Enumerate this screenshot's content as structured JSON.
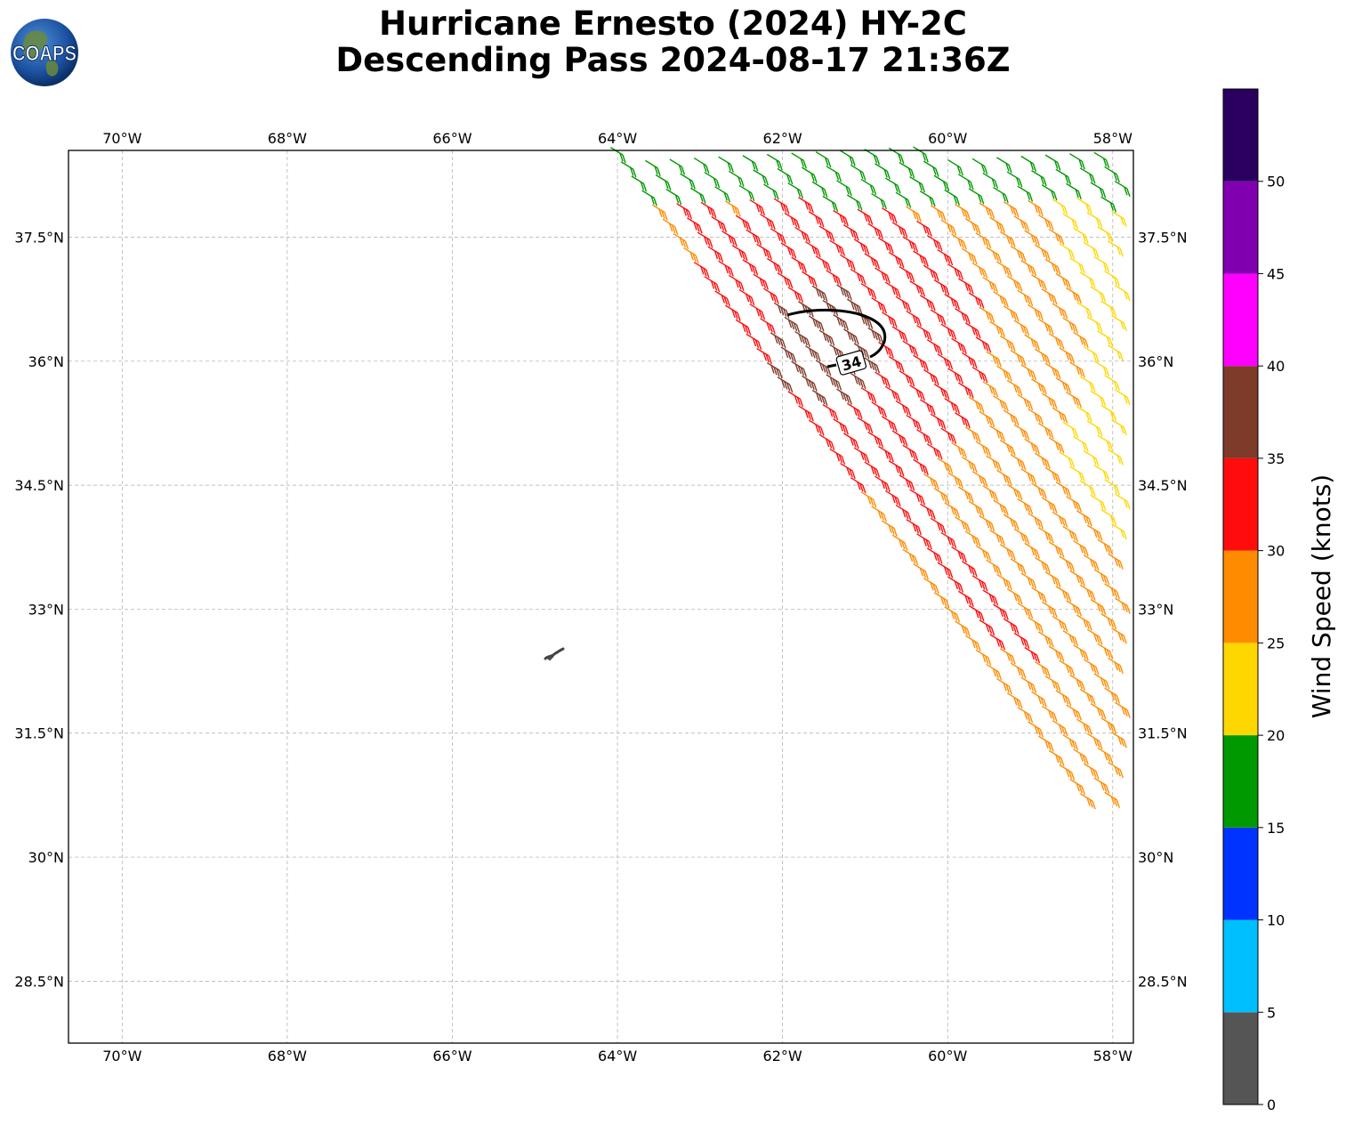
{
  "title": {
    "line1": "Hurricane Ernesto (2024) HY-2C",
    "line2": "Descending Pass 2024-08-17 21:36Z"
  },
  "logo": {
    "text": "COAPS"
  },
  "map": {
    "lon_range": [
      -70.65,
      -57.75
    ],
    "lat_range": [
      27.75,
      38.55
    ],
    "lon_ticks": [
      {
        "value": -70,
        "label": "70°W"
      },
      {
        "value": -68,
        "label": "68°W"
      },
      {
        "value": -66,
        "label": "66°W"
      },
      {
        "value": -64,
        "label": "64°W"
      },
      {
        "value": -62,
        "label": "62°W"
      },
      {
        "value": -60,
        "label": "60°W"
      },
      {
        "value": -58,
        "label": "58°W"
      }
    ],
    "lat_ticks": [
      {
        "value": 37.5,
        "label": "37.5°N"
      },
      {
        "value": 36,
        "label": "36°N"
      },
      {
        "value": 34.5,
        "label": "34.5°N"
      },
      {
        "value": 33,
        "label": "33°N"
      },
      {
        "value": 31.5,
        "label": "31.5°N"
      },
      {
        "value": 30,
        "label": "30°N"
      },
      {
        "value": 28.5,
        "label": "28.5°N"
      }
    ],
    "gridlines": true,
    "island": "Bermuda",
    "contour": {
      "label": "34",
      "color": "#000000"
    },
    "swath": {
      "corners_lonlat": [
        [
          -64.0,
          38.5
        ],
        [
          -57.75,
          38.5
        ],
        [
          -57.75,
          30.5
        ],
        [
          -58.0,
          30.45
        ]
      ],
      "note_rows": "wind barbs colored by speed"
    }
  },
  "colorbar": {
    "label": "Wind Speed (knots)",
    "range": [
      0,
      55
    ],
    "bins": [
      {
        "from": 0,
        "to": 5,
        "color": "#555555"
      },
      {
        "from": 5,
        "to": 10,
        "color": "#00bfff"
      },
      {
        "from": 10,
        "to": 15,
        "color": "#0033ff"
      },
      {
        "from": 15,
        "to": 20,
        "color": "#009900"
      },
      {
        "from": 20,
        "to": 25,
        "color": "#ffd700"
      },
      {
        "from": 25,
        "to": 30,
        "color": "#ff8c00"
      },
      {
        "from": 30,
        "to": 35,
        "color": "#ff0d0d"
      },
      {
        "from": 35,
        "to": 40,
        "color": "#7f3b2a"
      },
      {
        "from": 40,
        "to": 45,
        "color": "#ff00ff"
      },
      {
        "from": 45,
        "to": 50,
        "color": "#8000b0"
      },
      {
        "from": 50,
        "to": 55,
        "color": "#2a005f"
      }
    ],
    "ticks": [
      {
        "value": 0,
        "label": "0"
      },
      {
        "value": 5,
        "label": "5"
      },
      {
        "value": 10,
        "label": "10"
      },
      {
        "value": 15,
        "label": "15"
      },
      {
        "value": 20,
        "label": "20"
      },
      {
        "value": 25,
        "label": "25"
      },
      {
        "value": 30,
        "label": "30"
      },
      {
        "value": 35,
        "label": "35"
      },
      {
        "value": 40,
        "label": "40"
      },
      {
        "value": 45,
        "label": "45"
      },
      {
        "value": 50,
        "label": "50"
      }
    ]
  }
}
